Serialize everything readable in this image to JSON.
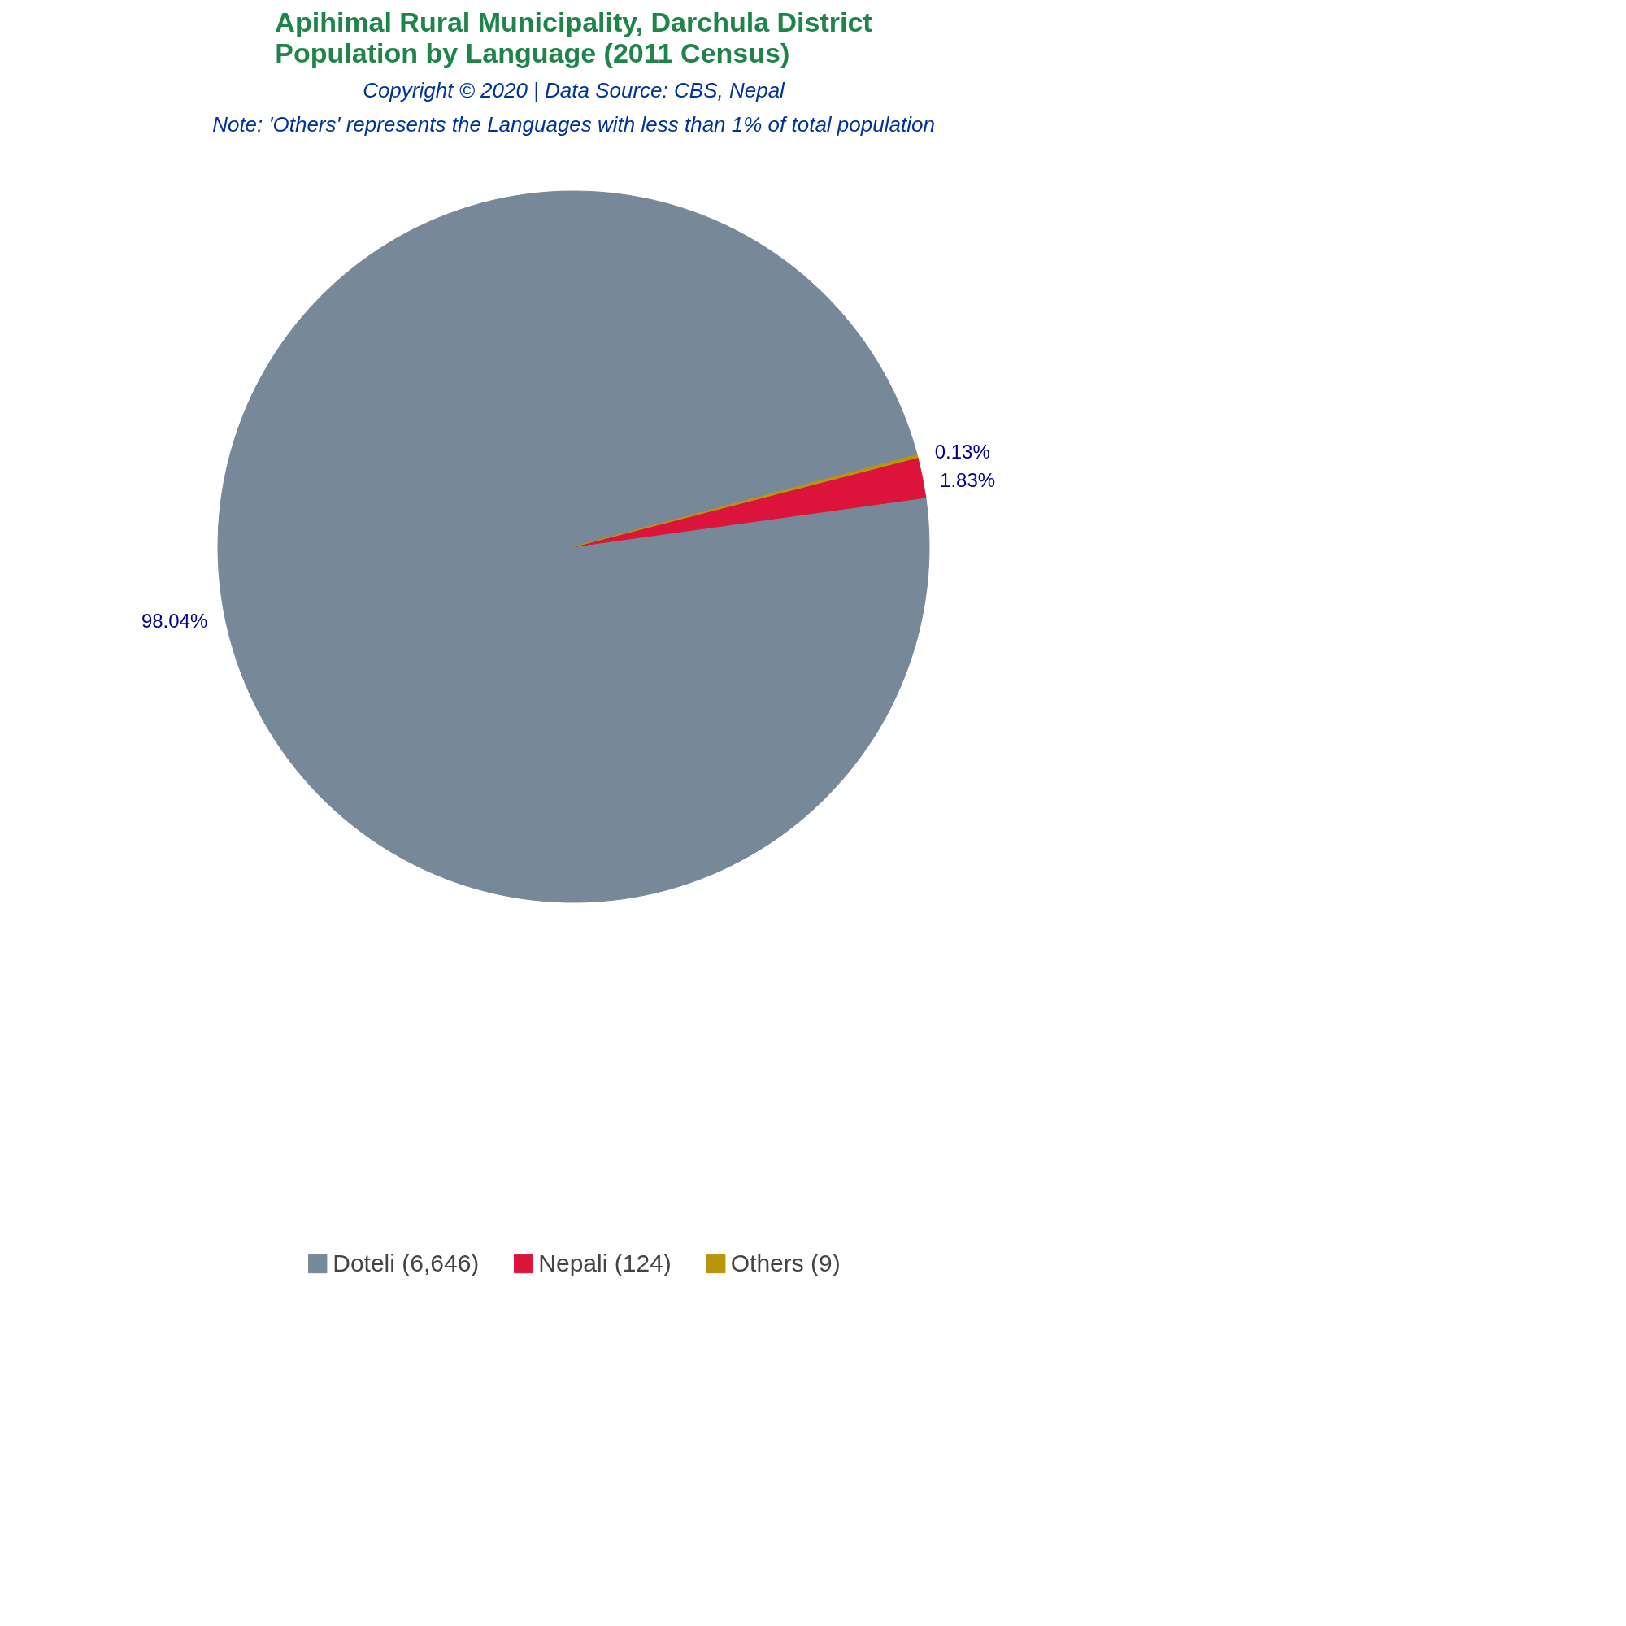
{
  "chart_data": {
    "type": "pie",
    "title": "Apihimal Rural Municipality, Darchula District\nPopulation by Language (2011 Census)",
    "subtitle": "Copyright © 2020 | Data Source: CBS, Nepal",
    "annotations": [
      "Note: 'Others' represents the Languages with less than 1% of total population"
    ],
    "categories": [
      "Doteli (6,646)",
      "Nepali (124)",
      "Others (9)"
    ],
    "values": [
      98.04,
      1.83,
      0.13
    ],
    "colors": [
      "#778899",
      "#dc143c",
      "#b8960b"
    ],
    "value_labels": [
      "98.04%",
      "1.83%",
      "0.13%"
    ],
    "legend": "bottom"
  }
}
